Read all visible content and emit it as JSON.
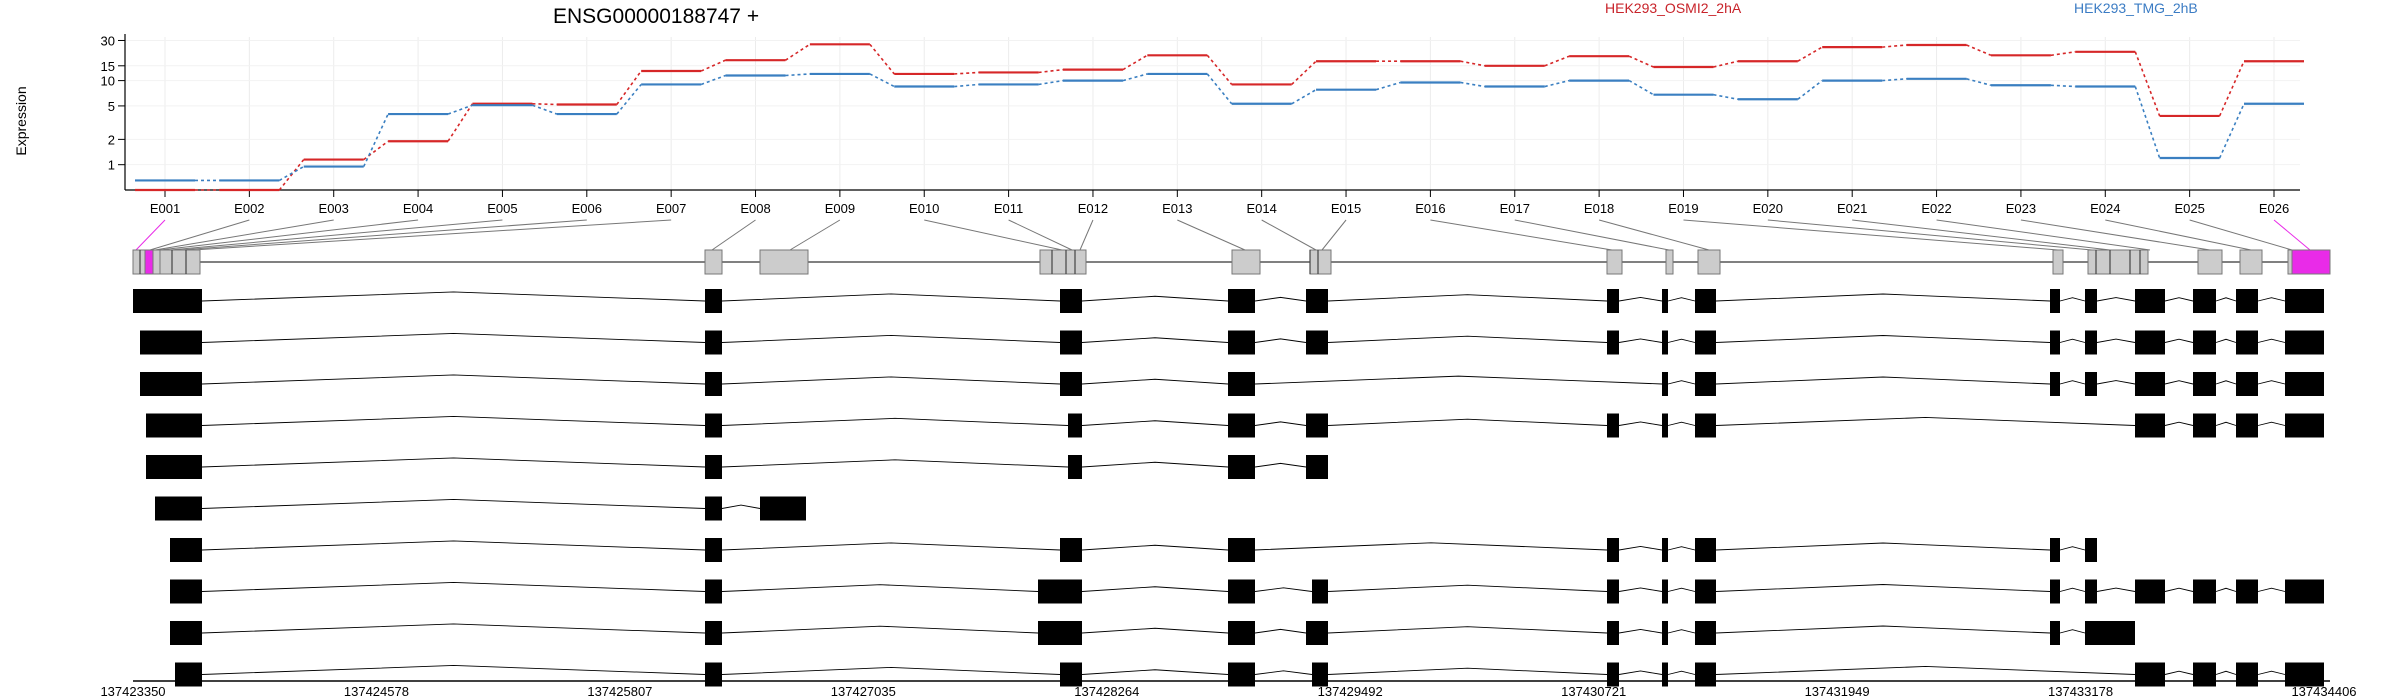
{
  "chart_data": {
    "type": "line",
    "title": "ENSG00000188747 +",
    "ylabel": "Expression",
    "y_scale": "log",
    "ylim": [
      0.5,
      33
    ],
    "y_ticks": [
      "1",
      "2",
      "5",
      "10",
      "15",
      "30"
    ],
    "grid": true,
    "legend_placement": "top-right",
    "categories": [
      "E001",
      "E002",
      "E003",
      "E004",
      "E005",
      "E006",
      "E007",
      "E008",
      "E009",
      "E010",
      "E011",
      "E012",
      "E013",
      "E014",
      "E015",
      "E016",
      "E017",
      "E018",
      "E019",
      "E020",
      "E021",
      "E022",
      "E023",
      "E024",
      "E025",
      "E026"
    ],
    "series": [
      {
        "name": "HEK293_OSMI2_2hA",
        "color": "#d62728",
        "values": [
          0.5,
          0.5,
          1.15,
          1.9,
          5.3,
          5.2,
          13,
          17.5,
          27,
          12,
          12.5,
          13.5,
          20,
          9,
          17,
          17,
          15,
          19.5,
          14.5,
          17,
          25,
          26.5,
          20,
          22,
          3.8,
          17
        ]
      },
      {
        "name": "HEK293_TMG_2hB",
        "color": "#3a7fc1",
        "values": [
          0.65,
          0.65,
          0.95,
          4.0,
          5.1,
          4.0,
          9,
          11.5,
          12,
          8.5,
          9,
          10,
          12,
          5.3,
          7.8,
          9.5,
          8.5,
          10,
          6.8,
          6,
          10,
          10.5,
          8.8,
          8.5,
          1.2,
          5.3
        ]
      }
    ],
    "genomic_ticks": [
      "137423350",
      "137424578",
      "137425807",
      "137427035",
      "137428264",
      "137429492",
      "137430721",
      "137431949",
      "137433178",
      "137434406"
    ],
    "exon_highlight_color": "#e92be8",
    "highlighted_exons": [
      "E001",
      "E026"
    ]
  }
}
